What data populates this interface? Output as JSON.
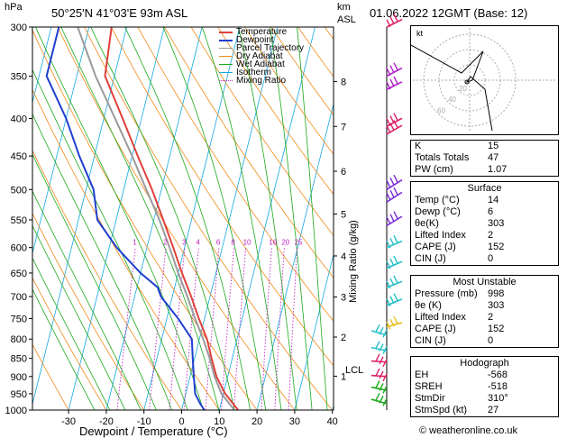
{
  "header": {
    "location": "50°25'N 41°03'E 93m ASL",
    "datetime": "01.06.2022 12GMT (Base: 12)",
    "y_unit_left": "hPa",
    "y_unit_right_line1": "km",
    "y_unit_right_line2": "ASL",
    "mixing_axis_label": "Mixing Ratio (g/kg)",
    "lcl_label": "LCL",
    "credit": "© weatheronline.co.uk"
  },
  "chart_data": {
    "type": "line",
    "subtype": "skew-T log-P",
    "xlabel": "Dewpoint / Temperature (°C)",
    "x_ticks": [
      -30,
      -20,
      -10,
      0,
      10,
      20,
      30,
      40
    ],
    "y_ticks_hpa": [
      300,
      350,
      400,
      450,
      500,
      550,
      600,
      650,
      700,
      750,
      800,
      850,
      900,
      950,
      1000
    ],
    "km_ticks": [
      {
        "label": "8",
        "p": 356
      },
      {
        "label": "7",
        "p": 410
      },
      {
        "label": "6",
        "p": 472
      },
      {
        "label": "5",
        "p": 540
      },
      {
        "label": "4",
        "p": 616
      },
      {
        "label": "3",
        "p": 701
      },
      {
        "label": "2",
        "p": 795
      },
      {
        "label": "1",
        "p": 899
      }
    ],
    "mixing_ratio_labels": [
      "1",
      "2",
      "3",
      "4",
      "6",
      "8",
      "10",
      "16",
      "20",
      "25"
    ],
    "mixing_ratio_values": [
      1,
      2,
      3,
      4,
      6,
      8,
      10,
      16,
      20,
      25
    ],
    "legend": [
      "Temperature",
      "Dewpoint",
      "Parcel Trajectory",
      "Dry Adiabat",
      "Wet Adiabat",
      "Isotherm",
      "Mixing Ratio"
    ],
    "colors": {
      "temperature": "#e0403a",
      "dewpoint": "#1f3fd0",
      "parcel": "#9a9a9a",
      "dry_adiabat": "#f08a1a",
      "wet_adiabat": "#1aa81a",
      "isotherm": "#12a8e0",
      "mixing_ratio": "#c020c0"
    },
    "series": [
      {
        "name": "Temperature",
        "points": [
          [
            1000,
            15
          ],
          [
            950,
            10.5
          ],
          [
            900,
            7
          ],
          [
            850,
            4.5
          ],
          [
            800,
            2
          ],
          [
            750,
            -1.5
          ],
          [
            700,
            -5
          ],
          [
            650,
            -9
          ],
          [
            600,
            -13
          ],
          [
            550,
            -17.5
          ],
          [
            500,
            -22.5
          ],
          [
            450,
            -28.5
          ],
          [
            400,
            -35
          ],
          [
            350,
            -42.5
          ],
          [
            300,
            -44
          ]
        ]
      },
      {
        "name": "Dewpoint",
        "points": [
          [
            1000,
            6
          ],
          [
            980,
            4.5
          ],
          [
            950,
            2.5
          ],
          [
            900,
            1
          ],
          [
            850,
            -0.5
          ],
          [
            800,
            -2
          ],
          [
            750,
            -7
          ],
          [
            700,
            -13
          ],
          [
            680,
            -14.5
          ],
          [
            650,
            -20
          ],
          [
            600,
            -28
          ],
          [
            550,
            -35
          ],
          [
            500,
            -38
          ],
          [
            450,
            -44
          ],
          [
            400,
            -50
          ],
          [
            350,
            -58
          ],
          [
            300,
            -58
          ]
        ]
      },
      {
        "name": "Parcel Trajectory",
        "points": [
          [
            1000,
            14
          ],
          [
            950,
            9.5
          ],
          [
            900,
            6.5
          ],
          [
            850,
            4
          ],
          [
            800,
            1
          ],
          [
            750,
            -2.5
          ],
          [
            700,
            -6
          ],
          [
            650,
            -10
          ],
          [
            600,
            -14
          ],
          [
            550,
            -18.5
          ],
          [
            500,
            -24
          ],
          [
            450,
            -30
          ],
          [
            400,
            -37
          ],
          [
            350,
            -45
          ],
          [
            300,
            -53
          ]
        ]
      }
    ]
  },
  "hodograph": {
    "label": "kt",
    "ring_labels": [
      "20",
      "40",
      "60"
    ]
  },
  "wind_barb_colors": [
    "#e0206a",
    "#b01cc8",
    "#7a2cd8",
    "#22c0c8",
    "#e6c020",
    "#18a818"
  ],
  "panel_indices": {
    "rows": [
      {
        "k": "K",
        "v": "15"
      },
      {
        "k": "Totals Totals",
        "v": "47"
      },
      {
        "k": "PW (cm)",
        "v": "1.07"
      }
    ]
  },
  "panel_surface": {
    "title": "Surface",
    "rows": [
      {
        "k": "Temp (°C)",
        "v": "14"
      },
      {
        "k": "Dewp (°C)",
        "v": "6"
      },
      {
        "k": "θe(K)",
        "v": "303"
      },
      {
        "k": "Lifted Index",
        "v": "2"
      },
      {
        "k": "CAPE (J)",
        "v": "152"
      },
      {
        "k": "CIN (J)",
        "v": "0"
      }
    ]
  },
  "panel_unstable": {
    "title": "Most Unstable",
    "rows": [
      {
        "k": "Pressure (mb)",
        "v": "998"
      },
      {
        "k": "θe (K)",
        "v": "303"
      },
      {
        "k": "Lifted Index",
        "v": "2"
      },
      {
        "k": "CAPE (J)",
        "v": "152"
      },
      {
        "k": "CIN (J)",
        "v": "0"
      }
    ]
  },
  "panel_hodo": {
    "title": "Hodograph",
    "rows": [
      {
        "k": "EH",
        "v": "-568"
      },
      {
        "k": "SREH",
        "v": "-518"
      },
      {
        "k": "StmDir",
        "v": "310°"
      },
      {
        "k": "StmSpd (kt)",
        "v": "27"
      }
    ]
  }
}
